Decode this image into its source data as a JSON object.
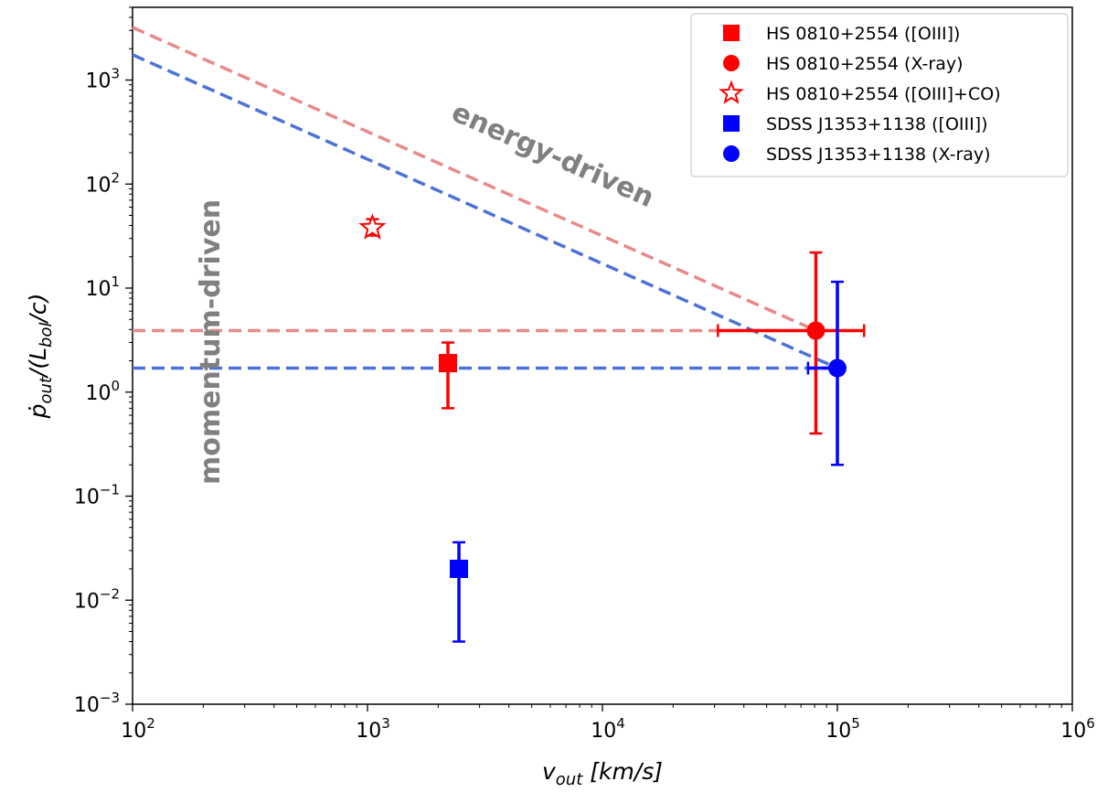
{
  "chart_data": {
    "type": "scatter",
    "xscale": "log",
    "yscale": "log",
    "xlim": [
      100,
      1000000
    ],
    "ylim": [
      0.001,
      5000
    ],
    "xlabel": "v_out [km/s]",
    "ylabel": "p_out/(L_bol/c)",
    "x_tick_labels": [
      "10^2",
      "10^3",
      "10^4",
      "10^5",
      "10^6"
    ],
    "y_tick_labels": [
      "10^-3",
      "10^-2",
      "10^-1",
      "10^0",
      "10^1",
      "10^2",
      "10^3"
    ],
    "colors": {
      "red": "#ff0000",
      "blue": "#0000ff",
      "red_line": "#e88a8a",
      "blue_line": "#4c72d8",
      "annotation": "#808080"
    },
    "series": [
      {
        "name": "HS 0810+2554 ([OIII])",
        "color": "#ff0000",
        "marker": "square",
        "x": 2200,
        "y": 1.9,
        "yerr": [
          0.7,
          3.0
        ]
      },
      {
        "name": "HS 0810+2554 (X-ray)",
        "color": "#ff0000",
        "marker": "circle",
        "x": 81000,
        "y": 3.9,
        "xerr": [
          31000,
          130000
        ],
        "yerr": [
          0.4,
          22
        ]
      },
      {
        "name": "HS 0810+2554 ([OIII]+CO)",
        "color": "#ff0000",
        "marker": "star",
        "x": 1050,
        "y": 38,
        "yerr": [
          32,
          46
        ]
      },
      {
        "name": "SDSS J1353+1138 ([OIII])",
        "color": "#0000ff",
        "marker": "square",
        "x": 2450,
        "y": 0.02,
        "yerr": [
          0.004,
          0.036
        ]
      },
      {
        "name": "SDSS J1353+1138 (X-ray)",
        "color": "#0000ff",
        "marker": "circle",
        "x": 100000,
        "y": 1.7,
        "xerr": [
          75000,
          100000
        ],
        "yerr": [
          0.2,
          11.5
        ]
      }
    ],
    "lines": [
      {
        "name": "red-energy",
        "color": "#e88a8a",
        "points": [
          [
            100,
            3200
          ],
          [
            81000,
            3.9
          ]
        ]
      },
      {
        "name": "red-momentum",
        "color": "#e88a8a",
        "points": [
          [
            100,
            3.9
          ],
          [
            81000,
            3.9
          ]
        ]
      },
      {
        "name": "blue-energy",
        "color": "#4c72d8",
        "points": [
          [
            100,
            1750
          ],
          [
            100000,
            1.7
          ]
        ]
      },
      {
        "name": "blue-momentum",
        "color": "#4c72d8",
        "points": [
          [
            100,
            1.7
          ],
          [
            100000,
            1.7
          ]
        ]
      }
    ],
    "annotations": {
      "energy": "energy-driven",
      "momentum": "momentum-driven"
    },
    "legend_position": "top-right"
  }
}
